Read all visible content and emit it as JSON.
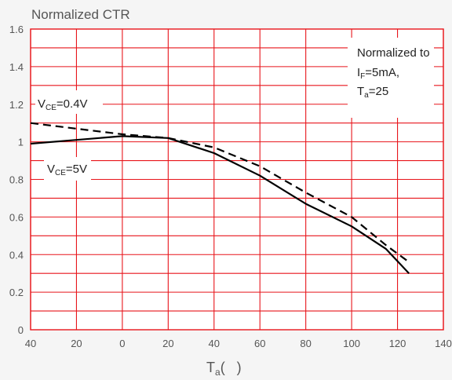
{
  "chart_data": {
    "type": "line",
    "ylabel": "Normalized CTR",
    "xlabel_main": "T",
    "xlabel_sub": "a",
    "xlabel_suffix": "(   )",
    "xlim": [
      -40,
      140
    ],
    "ylim": [
      0,
      1.6
    ],
    "xticks": [
      -40,
      -20,
      0,
      20,
      40,
      60,
      80,
      100,
      120,
      140
    ],
    "xtick_labels": [
      "40",
      "20",
      "0",
      "20",
      "40",
      "60",
      "80",
      "100",
      "120",
      "140"
    ],
    "yticks": [
      0,
      0.2,
      0.4,
      0.6,
      0.8,
      1.0,
      1.2,
      1.4,
      1.6
    ],
    "ytick_labels": [
      "0",
      "0.2",
      "0.4",
      "0.6",
      "0.8",
      "1",
      "1.2",
      "1.4",
      "1.6"
    ],
    "grid": true,
    "colors": {
      "grid": "#e8151b",
      "line": "#000000",
      "background": "#f5f5f5",
      "plot_bg": "#ffffff"
    },
    "series": [
      {
        "name": "VCE=0.4V",
        "label_main": "V",
        "label_sub": "CE",
        "label_suffix": "=0.4V",
        "style": "dashed",
        "x": [
          -40,
          -20,
          0,
          20,
          40,
          60,
          80,
          100,
          115,
          125
        ],
        "y": [
          1.1,
          1.07,
          1.04,
          1.02,
          0.97,
          0.87,
          0.73,
          0.6,
          0.45,
          0.36
        ]
      },
      {
        "name": "VCE=5V",
        "label_main": "V",
        "label_sub": "CE",
        "label_suffix": "=5V",
        "style": "solid",
        "x": [
          -40,
          -20,
          0,
          20,
          40,
          60,
          80,
          100,
          115,
          125
        ],
        "y": [
          0.99,
          1.01,
          1.03,
          1.02,
          0.94,
          0.82,
          0.67,
          0.55,
          0.43,
          0.3
        ]
      }
    ],
    "annotation": {
      "line1": "Normalized to",
      "line2_main": "I",
      "line2_sub": "F",
      "line2_suffix": "=5mA,",
      "line3_main": "T",
      "line3_sub": "a",
      "line3_suffix": "=25"
    }
  }
}
